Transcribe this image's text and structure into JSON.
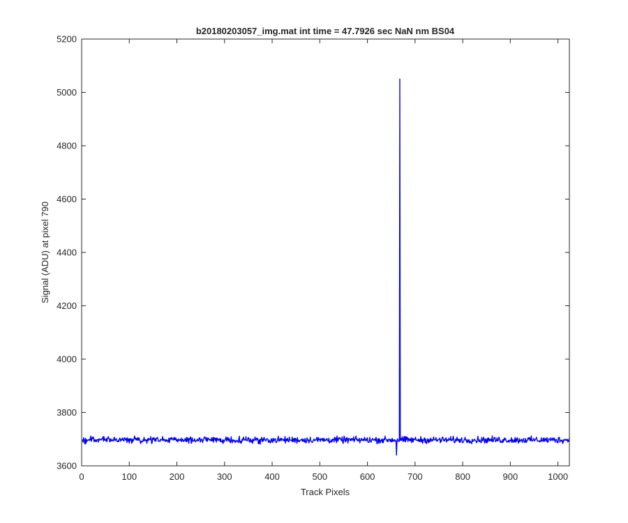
{
  "chart_data": {
    "type": "line",
    "title": "b20180203057_img.mat int time = 47.7926 sec  NaN nm BS04",
    "xlabel": "Track Pixels",
    "ylabel": "Signal (ADU) at pixel 790",
    "xlim": [
      0,
      1024
    ],
    "ylim": [
      3600,
      5200
    ],
    "xticks": [
      0,
      100,
      200,
      300,
      400,
      500,
      600,
      700,
      800,
      900,
      1000
    ],
    "yticks": [
      3600,
      3800,
      4000,
      4200,
      4400,
      4600,
      4800,
      5000,
      5200
    ],
    "grid": false,
    "line_color": "#0000ff",
    "baseline": 3697,
    "noise_amplitude": 12,
    "spike": {
      "x": 668,
      "y": 5050
    },
    "dip": {
      "x": 661,
      "y": 3640
    },
    "series": [
      {
        "x_start": 1,
        "x_end": 1024
      }
    ]
  }
}
